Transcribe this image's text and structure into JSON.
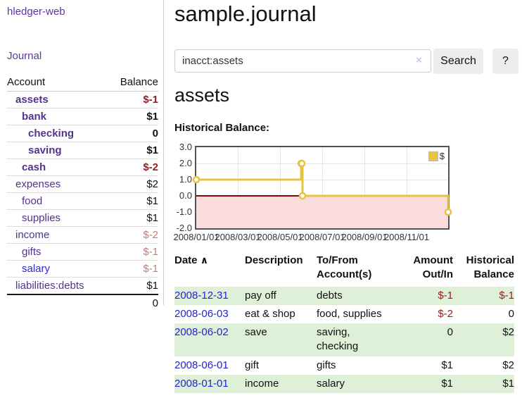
{
  "colors": {
    "link_purple": "#5e35a1",
    "account_purple": "#53338e",
    "link_blue": "#2a2ad4",
    "date_blue": "#2222d8",
    "negative_red": "#9b1b1b",
    "dim_negative_rose": "#c17e7e",
    "shaded_row_green": "#dff0d8",
    "chart_series_yellow": "#e8c340",
    "chart_negative_region_pink": "#fbdcdc",
    "chart_zero_line_red": "#8b0000"
  },
  "sidebar": {
    "brand": "hledger-web",
    "journal_label": "Journal",
    "table": {
      "account_header": "Account",
      "balance_header": "Balance",
      "rows": [
        {
          "name": "assets",
          "level": 1,
          "bold": true,
          "name_class": "",
          "balance": "$-1",
          "balance_class": "neg"
        },
        {
          "name": "bank",
          "level": 2,
          "bold": true,
          "name_class": "",
          "balance": "$1",
          "balance_class": ""
        },
        {
          "name": "checking",
          "level": 3,
          "bold": true,
          "name_class": "",
          "balance": "0",
          "balance_class": ""
        },
        {
          "name": "saving",
          "level": 3,
          "bold": true,
          "name_class": "",
          "balance": "$1",
          "balance_class": ""
        },
        {
          "name": "cash",
          "level": 2,
          "bold": true,
          "name_class": "",
          "balance": "$-2",
          "balance_class": "neg"
        },
        {
          "name": "expenses",
          "level": 1,
          "bold": false,
          "name_class": "",
          "balance": "$2",
          "balance_class": ""
        },
        {
          "name": "food",
          "level": 2,
          "bold": false,
          "name_class": "",
          "balance": "$1",
          "balance_class": ""
        },
        {
          "name": "supplies",
          "level": 2,
          "bold": false,
          "name_class": "",
          "balance": "$1",
          "balance_class": ""
        },
        {
          "name": "income",
          "level": 1,
          "bold": false,
          "name_class": "",
          "balance": "$-2",
          "balance_class": "dimneg"
        },
        {
          "name": "gifts",
          "level": 2,
          "bold": false,
          "name_class": "",
          "balance": "$-1",
          "balance_class": "dimneg"
        },
        {
          "name": "salary",
          "level": 2,
          "bold": false,
          "name_class": "blue",
          "balance": "$-1",
          "balance_class": "dimneg"
        },
        {
          "name": "liabilities:debts",
          "level": 1,
          "bold": false,
          "name_class": "",
          "balance": "$1",
          "balance_class": ""
        }
      ],
      "total": "0"
    }
  },
  "main": {
    "title": "sample.journal",
    "search": {
      "value": "inacct:assets",
      "clear_icon": "×",
      "button_label": "Search",
      "help_label": "?"
    },
    "account_heading": "assets",
    "section_label": "Historical Balance:"
  },
  "chart_data": {
    "type": "line",
    "style": "step",
    "title": "Historical Balance",
    "series": [
      {
        "name": "$",
        "color": "#e8c340",
        "points": [
          [
            "2008-01-01",
            1
          ],
          [
            "2008-06-01",
            2
          ],
          [
            "2008-06-02",
            2
          ],
          [
            "2008-06-03",
            0
          ],
          [
            "2008-12-31",
            -1
          ]
        ]
      }
    ],
    "x_ticks": [
      "2008/01/01",
      "2008/03/01",
      "2008/05/01",
      "2008/07/01",
      "2008/09/01",
      "2008/11/01"
    ],
    "y_ticks": [
      "3.0",
      "2.0",
      "1.0",
      "0.0",
      "-1.0",
      "-2.0"
    ],
    "xlim": [
      "2008-01-01",
      "2008-12-31"
    ],
    "ylim": [
      -2,
      3
    ],
    "grid": true,
    "legend_position": "top-right",
    "negative_region_shaded": true
  },
  "register": {
    "headers": [
      "Date",
      "Description",
      "To/From Account(s)",
      "Amount Out/In",
      "Historical Balance"
    ],
    "sort_icon": "∧",
    "rows": [
      {
        "date": "2008-12-31",
        "description": "pay off",
        "accounts": "debts",
        "amount": "$-1",
        "amount_negative": true,
        "balance": "$-1",
        "balance_negative": true,
        "shaded": true
      },
      {
        "date": "2008-06-03",
        "description": "eat & shop",
        "accounts": "food, supplies",
        "amount": "$-2",
        "amount_negative": true,
        "balance": "0",
        "balance_negative": false,
        "shaded": false
      },
      {
        "date": "2008-06-02",
        "description": "save",
        "accounts": "saving,\nchecking",
        "amount": "0",
        "amount_negative": false,
        "balance": "$2",
        "balance_negative": false,
        "shaded": true
      },
      {
        "date": "2008-06-01",
        "description": "gift",
        "accounts": "gifts",
        "amount": "$1",
        "amount_negative": false,
        "balance": "$2",
        "balance_negative": false,
        "shaded": false
      },
      {
        "date": "2008-01-01",
        "description": "income",
        "accounts": "salary",
        "amount": "$1",
        "amount_negative": false,
        "balance": "$1",
        "balance_negative": false,
        "shaded": true
      }
    ]
  }
}
